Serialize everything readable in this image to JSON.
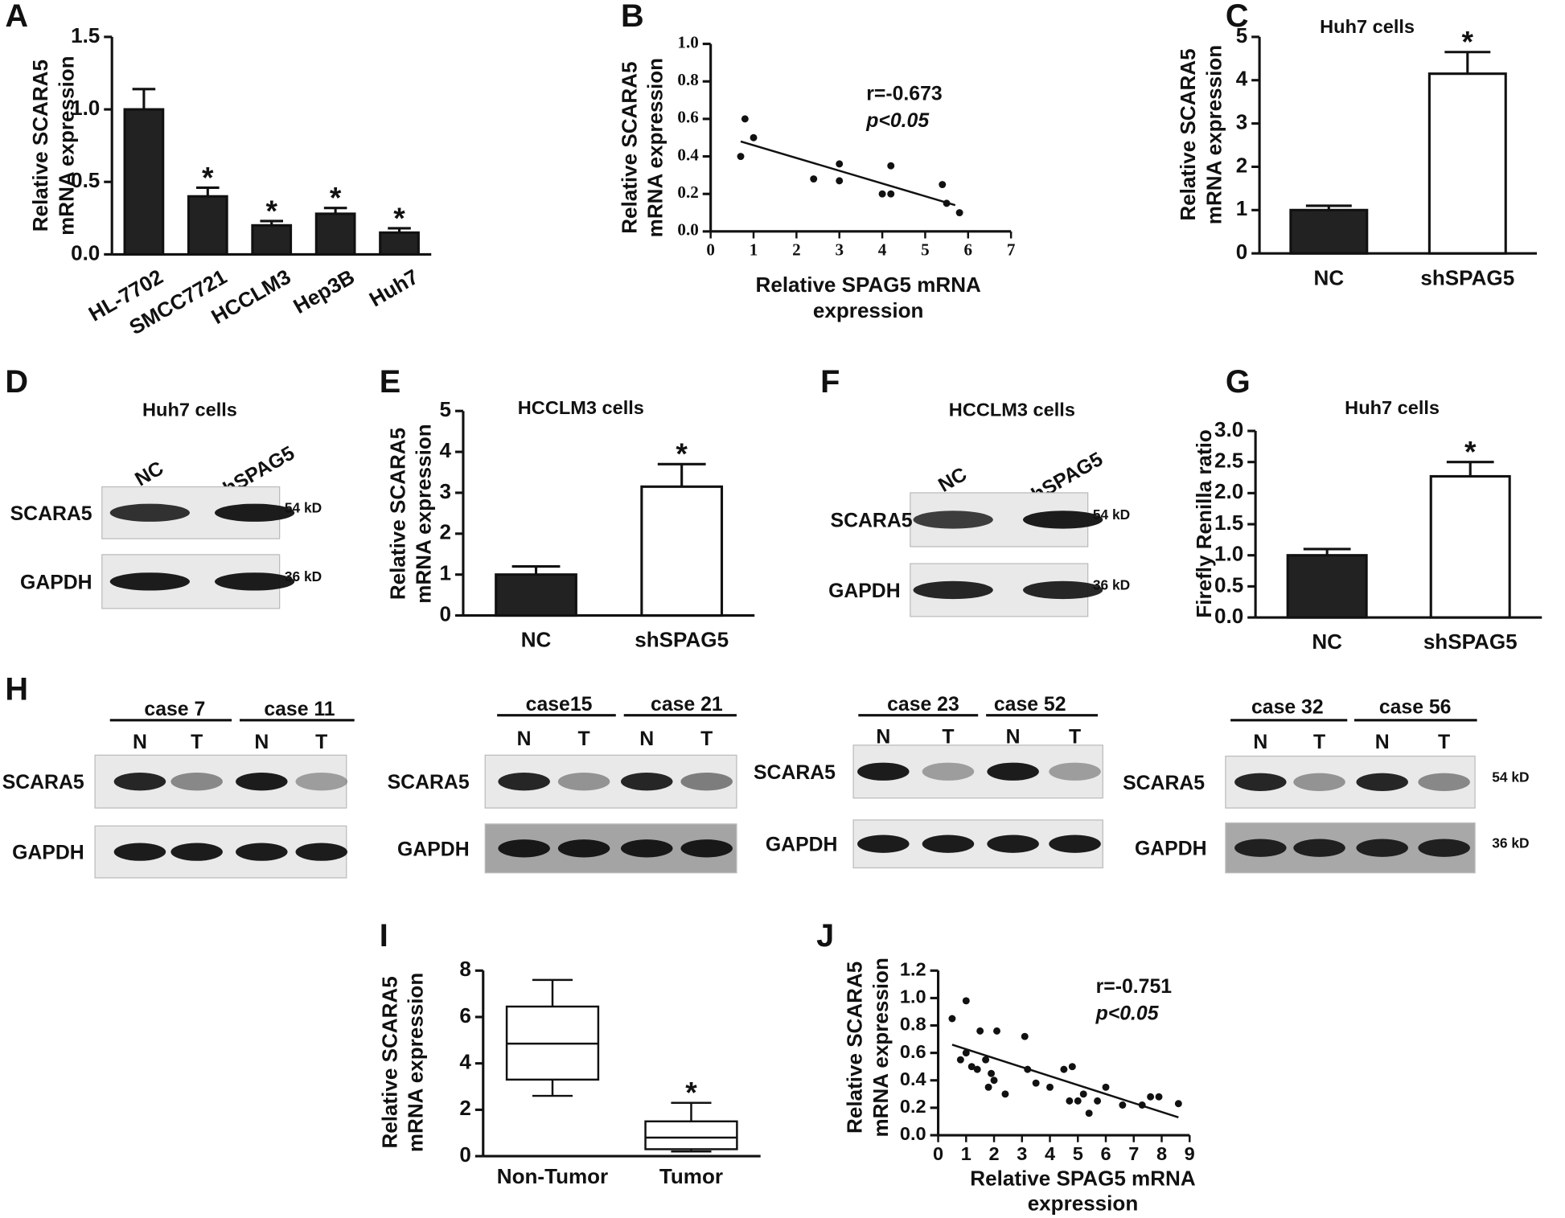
{
  "chart_data": [
    {
      "panel": "A",
      "type": "bar",
      "ylabel": [
        "Relative SCARA5",
        "mRNA expression"
      ],
      "categories": [
        "HL-7702",
        "SMCC7721",
        "HCCLM3",
        "Hep3B",
        "Huh7"
      ],
      "values": [
        1.0,
        0.4,
        0.2,
        0.28,
        0.15
      ],
      "errors": [
        0.14,
        0.06,
        0.03,
        0.04,
        0.03
      ],
      "colors": [
        "#222222",
        "#222222",
        "#222222",
        "#222222",
        "#222222"
      ],
      "significance": [
        null,
        "*",
        "*",
        "*",
        "*"
      ],
      "ylim": [
        0,
        1.5
      ],
      "yticks": [
        {
          "value": 0,
          "label": "0.0"
        },
        {
          "value": 0.5,
          "label": "0.5"
        },
        {
          "value": 1,
          "label": "1.0"
        },
        {
          "value": 1.5,
          "label": "1.5"
        }
      ]
    },
    {
      "panel": "B",
      "type": "scatter",
      "ylabel": [
        "Relative SCARA5",
        "mRNA expression"
      ],
      "xlabel": [
        "Relative  SPAG5 mRNA",
        "expression"
      ],
      "x": [
        0.7,
        0.8,
        1.0,
        2.4,
        3.0,
        3.0,
        4.0,
        4.2,
        4.2,
        5.4,
        5.5,
        5.8
      ],
      "y": [
        0.4,
        0.6,
        0.5,
        0.28,
        0.36,
        0.27,
        0.2,
        0.2,
        0.35,
        0.25,
        0.15,
        0.1
      ],
      "fit": {
        "x": [
          0.7,
          5.7
        ],
        "y": [
          0.48,
          0.14
        ]
      },
      "annotations": [
        "r=-0.673",
        "p<0.05"
      ],
      "xlim": [
        0,
        7
      ],
      "xticks": [
        0,
        1,
        2,
        3,
        4,
        5,
        6,
        7
      ],
      "ylim": [
        0,
        1
      ],
      "yticks": [
        {
          "value": 0,
          "label": "0.0"
        },
        {
          "value": 0.2,
          "label": "0.2"
        },
        {
          "value": 0.4,
          "label": "0.4"
        },
        {
          "value": 0.6,
          "label": "0.6"
        },
        {
          "value": 0.8,
          "label": "0.8"
        },
        {
          "value": 1,
          "label": "1.0"
        }
      ]
    },
    {
      "panel": "C",
      "type": "bar",
      "title": "Huh7 cells",
      "ylabel": [
        "Relative SCARA5",
        "mRNA expression"
      ],
      "categories": [
        "NC",
        "shSPAG5"
      ],
      "values": [
        1.0,
        4.15
      ],
      "errors": [
        0.1,
        0.5
      ],
      "colors": [
        "#222222",
        "#ffffff"
      ],
      "significance": [
        null,
        "*"
      ],
      "ylim": [
        0,
        5
      ],
      "yticks": [
        0,
        1,
        2,
        3,
        4,
        5
      ]
    },
    {
      "panel": "E",
      "type": "bar",
      "title": "HCCLM3 cells",
      "ylabel": [
        "Relative SCARA5",
        "mRNA expression"
      ],
      "categories": [
        "NC",
        "shSPAG5"
      ],
      "values": [
        1.0,
        3.15
      ],
      "errors": [
        0.2,
        0.55
      ],
      "colors": [
        "#222222",
        "#ffffff"
      ],
      "significance": [
        null,
        "*"
      ],
      "ylim": [
        0,
        5
      ],
      "yticks": [
        0,
        1,
        2,
        3,
        4,
        5
      ]
    },
    {
      "panel": "G",
      "type": "bar",
      "title": "Huh7 cells",
      "ylabel": [
        "Firefly Renilla ratio"
      ],
      "categories": [
        "NC",
        "shSPAG5"
      ],
      "values": [
        1.0,
        2.27
      ],
      "errors": [
        0.1,
        0.23
      ],
      "colors": [
        "#222222",
        "#ffffff"
      ],
      "significance": [
        null,
        "*"
      ],
      "ylim": [
        0,
        3
      ],
      "yticks": [
        {
          "value": 0,
          "label": "0.0"
        },
        {
          "value": 0.5,
          "label": "0.5"
        },
        {
          "value": 1,
          "label": "1.0"
        },
        {
          "value": 1.5,
          "label": "1.5"
        },
        {
          "value": 2,
          "label": "2.0"
        },
        {
          "value": 2.5,
          "label": "2.5"
        },
        {
          "value": 3,
          "label": "3.0"
        }
      ]
    },
    {
      "panel": "I",
      "type": "box",
      "ylabel": [
        "Relative SCARA5",
        "mRNA expression"
      ],
      "categories": [
        "Non-Tumor",
        "Tumor"
      ],
      "boxes": [
        {
          "min": 2.6,
          "q1": 3.3,
          "median": 4.85,
          "q3": 6.45,
          "max": 7.6
        },
        {
          "min": 0.2,
          "q1": 0.3,
          "median": 0.8,
          "q3": 1.5,
          "max": 2.3
        }
      ],
      "significance": [
        null,
        "*"
      ],
      "ylim": [
        0,
        8
      ],
      "yticks": [
        0,
        2,
        4,
        6,
        8
      ]
    },
    {
      "panel": "J",
      "type": "scatter",
      "ylabel": [
        "Relative SCARA5",
        "mRNA expression"
      ],
      "xlabel": [
        "Relative  SPAG5 mRNA",
        "expression"
      ],
      "x": [
        0.5,
        1.0,
        0.8,
        1.0,
        1.2,
        1.4,
        1.5,
        1.7,
        1.9,
        2.0,
        2.1,
        2.4,
        3.1,
        3.2,
        3.5,
        4.0,
        4.5,
        4.7,
        4.8,
        5.0,
        5.2,
        5.4,
        5.7,
        6.0,
        6.6,
        7.3,
        7.6,
        7.9,
        8.6,
        1.8
      ],
      "y": [
        0.85,
        0.98,
        0.55,
        0.6,
        0.5,
        0.48,
        0.76,
        0.55,
        0.45,
        0.4,
        0.76,
        0.3,
        0.72,
        0.48,
        0.38,
        0.35,
        0.48,
        0.25,
        0.5,
        0.25,
        0.3,
        0.16,
        0.25,
        0.35,
        0.22,
        0.22,
        0.28,
        0.28,
        0.23,
        0.35
      ],
      "fit": {
        "x": [
          0.5,
          8.6
        ],
        "y": [
          0.66,
          0.13
        ]
      },
      "annotations": [
        "r=-0.751",
        "p<0.05"
      ],
      "xlim": [
        0,
        9
      ],
      "xticks": [
        0,
        1,
        2,
        3,
        4,
        5,
        6,
        7,
        8,
        9
      ],
      "ylim": [
        0,
        1.2
      ],
      "yticks": [
        {
          "value": 0,
          "label": "0.0"
        },
        {
          "value": 0.2,
          "label": "0.2"
        },
        {
          "value": 0.4,
          "label": "0.4"
        },
        {
          "value": 0.6,
          "label": "0.6"
        },
        {
          "value": 0.8,
          "label": "0.8"
        },
        {
          "value": 1,
          "label": "1.0"
        },
        {
          "value": 1.2,
          "label": "1.2"
        }
      ]
    }
  ],
  "blots": [
    {
      "panel": "D",
      "title": "Huh7 cells",
      "lanes": [
        "NC",
        "shSPAG5"
      ],
      "rows": [
        "SCARA5",
        "GAPDH"
      ],
      "sizes": [
        "54 kD",
        "36 kD"
      ]
    },
    {
      "panel": "F",
      "title": "HCCLM3 cells",
      "lanes": [
        "NC",
        "shSPAG5"
      ],
      "rows": [
        "SCARA5",
        "GAPDH"
      ],
      "sizes": [
        "54 kD",
        "36 kD"
      ]
    },
    {
      "panel": "H",
      "groups": [
        "case 7",
        "case 11"
      ],
      "lanes": [
        "N",
        "T",
        "N",
        "T"
      ],
      "rows": [
        "SCARA5",
        "GAPDH"
      ]
    },
    {
      "groups": [
        "case15",
        "case 21"
      ],
      "lanes": [
        "N",
        "T",
        "N",
        "T"
      ],
      "rows": [
        "SCARA5",
        "GAPDH"
      ]
    },
    {
      "groups": [
        "case 23",
        "case 52"
      ],
      "lanes": [
        "N",
        "T",
        "N",
        "T"
      ],
      "rows": [
        "SCARA5",
        "GAPDH"
      ]
    },
    {
      "groups": [
        "case 32",
        "case 56"
      ],
      "lanes": [
        "N",
        "T",
        "N",
        "T"
      ],
      "rows": [
        "SCARA5",
        "GAPDH"
      ],
      "sizes": [
        "54 kD",
        "36 kD"
      ]
    }
  ]
}
